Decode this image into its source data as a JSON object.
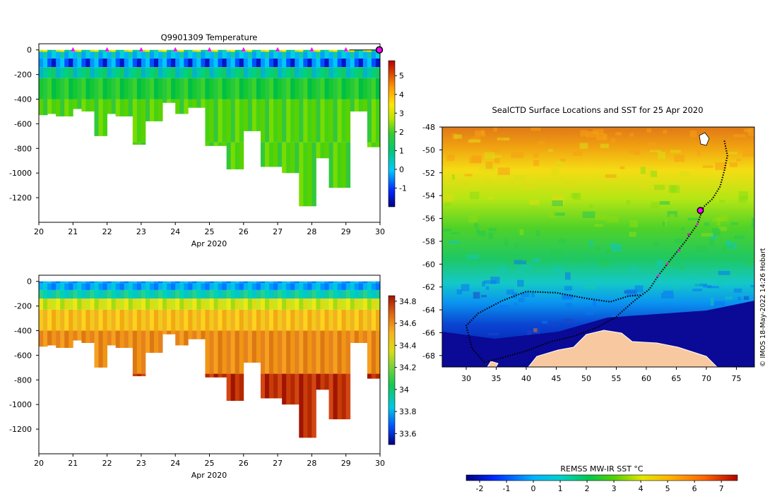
{
  "chart_data": [
    {
      "type": "heatmap",
      "id": "temperature-section",
      "title": "Q9901309  Temperature",
      "xlabel": "Apr 2020",
      "ylabel": "",
      "x_tick_labels": [
        "20",
        "21",
        "22",
        "23",
        "24",
        "25",
        "26",
        "27",
        "28",
        "29",
        "30"
      ],
      "xlim": [
        20,
        30
      ],
      "ylim": [
        -1400,
        50
      ],
      "y_ticks": [
        0,
        -200,
        -400,
        -600,
        -800,
        -1000,
        -1200
      ],
      "colorbar": {
        "min": -2,
        "max": 5.8,
        "ticks": [
          5,
          4,
          3,
          2,
          1,
          0,
          -1
        ]
      },
      "profiles": [
        {
          "day": 20.05,
          "maxdepth": -530
        },
        {
          "day": 20.35,
          "maxdepth": -520
        },
        {
          "day": 20.75,
          "maxdepth": -540
        },
        {
          "day": 21.15,
          "maxdepth": -480
        },
        {
          "day": 21.4,
          "maxdepth": -500
        },
        {
          "day": 21.8,
          "maxdepth": -700
        },
        {
          "day": 22.1,
          "maxdepth": -520
        },
        {
          "day": 22.5,
          "maxdepth": -540
        },
        {
          "day": 22.9,
          "maxdepth": -770
        },
        {
          "day": 23.4,
          "maxdepth": -580
        },
        {
          "day": 23.9,
          "maxdepth": -430
        },
        {
          "day": 24.15,
          "maxdepth": -520
        },
        {
          "day": 24.5,
          "maxdepth": -470
        },
        {
          "day": 25.3,
          "maxdepth": -780
        },
        {
          "day": 25.8,
          "maxdepth": -970
        },
        {
          "day": 26.2,
          "maxdepth": -660
        },
        {
          "day": 26.9,
          "maxdepth": -950
        },
        {
          "day": 27.3,
          "maxdepth": -1000
        },
        {
          "day": 27.85,
          "maxdepth": -1270
        },
        {
          "day": 28.3,
          "maxdepth": -880
        },
        {
          "day": 28.75,
          "maxdepth": -1120
        },
        {
          "day": 29.4,
          "maxdepth": -500
        },
        {
          "day": 29.8,
          "maxdepth": -790
        }
      ],
      "markers": {
        "days": [
          21,
          22,
          23,
          24,
          25,
          26,
          27,
          28,
          29
        ],
        "color": "#ff00ff",
        "current_day": 30
      }
    },
    {
      "type": "heatmap",
      "id": "salinity-section",
      "title": "",
      "xlabel": "Apr 2020",
      "x_tick_labels": [
        "20",
        "21",
        "22",
        "23",
        "24",
        "25",
        "26",
        "27",
        "28",
        "29",
        "30"
      ],
      "xlim": [
        20,
        30
      ],
      "ylim": [
        -1400,
        50
      ],
      "y_ticks": [
        0,
        -200,
        -400,
        -600,
        -800,
        -1000,
        -1200
      ],
      "colorbar": {
        "min": 33.5,
        "max": 34.85,
        "ticks": [
          "34.8",
          "34.6",
          "34.4",
          "34.2",
          "34",
          "33.8",
          "33.6"
        ]
      }
    },
    {
      "type": "heatmap",
      "id": "sst-map",
      "title": "SealCTD Surface Locations and SST for 25 Apr 2020",
      "x_tick_labels": [
        "30",
        "35",
        "40",
        "45",
        "50",
        "55",
        "60",
        "65",
        "70",
        "75"
      ],
      "y_tick_labels": [
        "-48",
        "-50",
        "-52",
        "-54",
        "-56",
        "-58",
        "-60",
        "-62",
        "-64",
        "-66",
        "-68"
      ],
      "xlim": [
        26,
        78
      ],
      "ylim": [
        -69,
        -48
      ],
      "colorbar": {
        "label": "REMSS MW-IR SST °C",
        "ticks": [
          "-2",
          "-1",
          "0",
          "1",
          "2",
          "3",
          "4",
          "5",
          "6",
          "7"
        ],
        "min": -2.5,
        "max": 7.6
      },
      "credit": "© IMOS 18-May-2022 14:26 Hobart",
      "track_current_position": {
        "lon": 69,
        "lat": -55.3
      }
    }
  ]
}
